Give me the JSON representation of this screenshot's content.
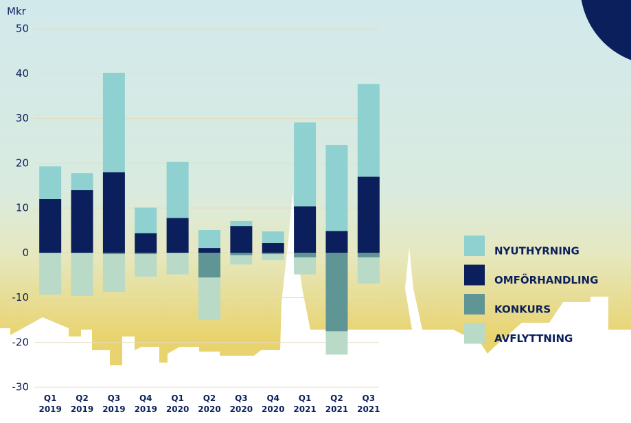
{
  "chart_data": {
    "type": "bar",
    "stacked": true,
    "y_label": "Mkr",
    "categories": [
      "Q1\n2019",
      "Q2\n2019",
      "Q3\n2019",
      "Q4\n2019",
      "Q1\n2020",
      "Q2\n2020",
      "Q3\n2020",
      "Q4\n2020",
      "Q1\n2021",
      "Q2\n2021",
      "Q3\n2021"
    ],
    "series": [
      {
        "name": "NYUTHYRNING",
        "color": "#8fd1d0",
        "values": [
          7.3,
          3.8,
          22.2,
          5.7,
          12.5,
          4,
          1.1,
          2.6,
          18.7,
          19.2,
          20.7
        ]
      },
      {
        "name": "OMFÖRHANDLING",
        "color": "#0a1f5c",
        "values": [
          12,
          14,
          18,
          4.4,
          7.8,
          1.1,
          6,
          2.2,
          10.4,
          4.9,
          17
        ]
      },
      {
        "name": "KONKURS",
        "color": "#5f9595",
        "values": [
          0,
          0,
          -0.3,
          -0.3,
          0,
          -5.5,
          -0.5,
          -0.3,
          -1,
          -17.5,
          -1
        ]
      },
      {
        "name": "AVFLYTTNING",
        "color": "#b8dac7",
        "values": [
          -9.3,
          -9.6,
          -8.4,
          -5,
          -4.8,
          -9.4,
          -2.1,
          -1.3,
          -3.8,
          -5.2,
          -5.8
        ]
      }
    ],
    "ylim": [
      -30,
      50
    ],
    "yticks": [
      -30,
      -20,
      -10,
      0,
      10,
      20,
      30,
      40,
      50
    ],
    "grid": true
  }
}
